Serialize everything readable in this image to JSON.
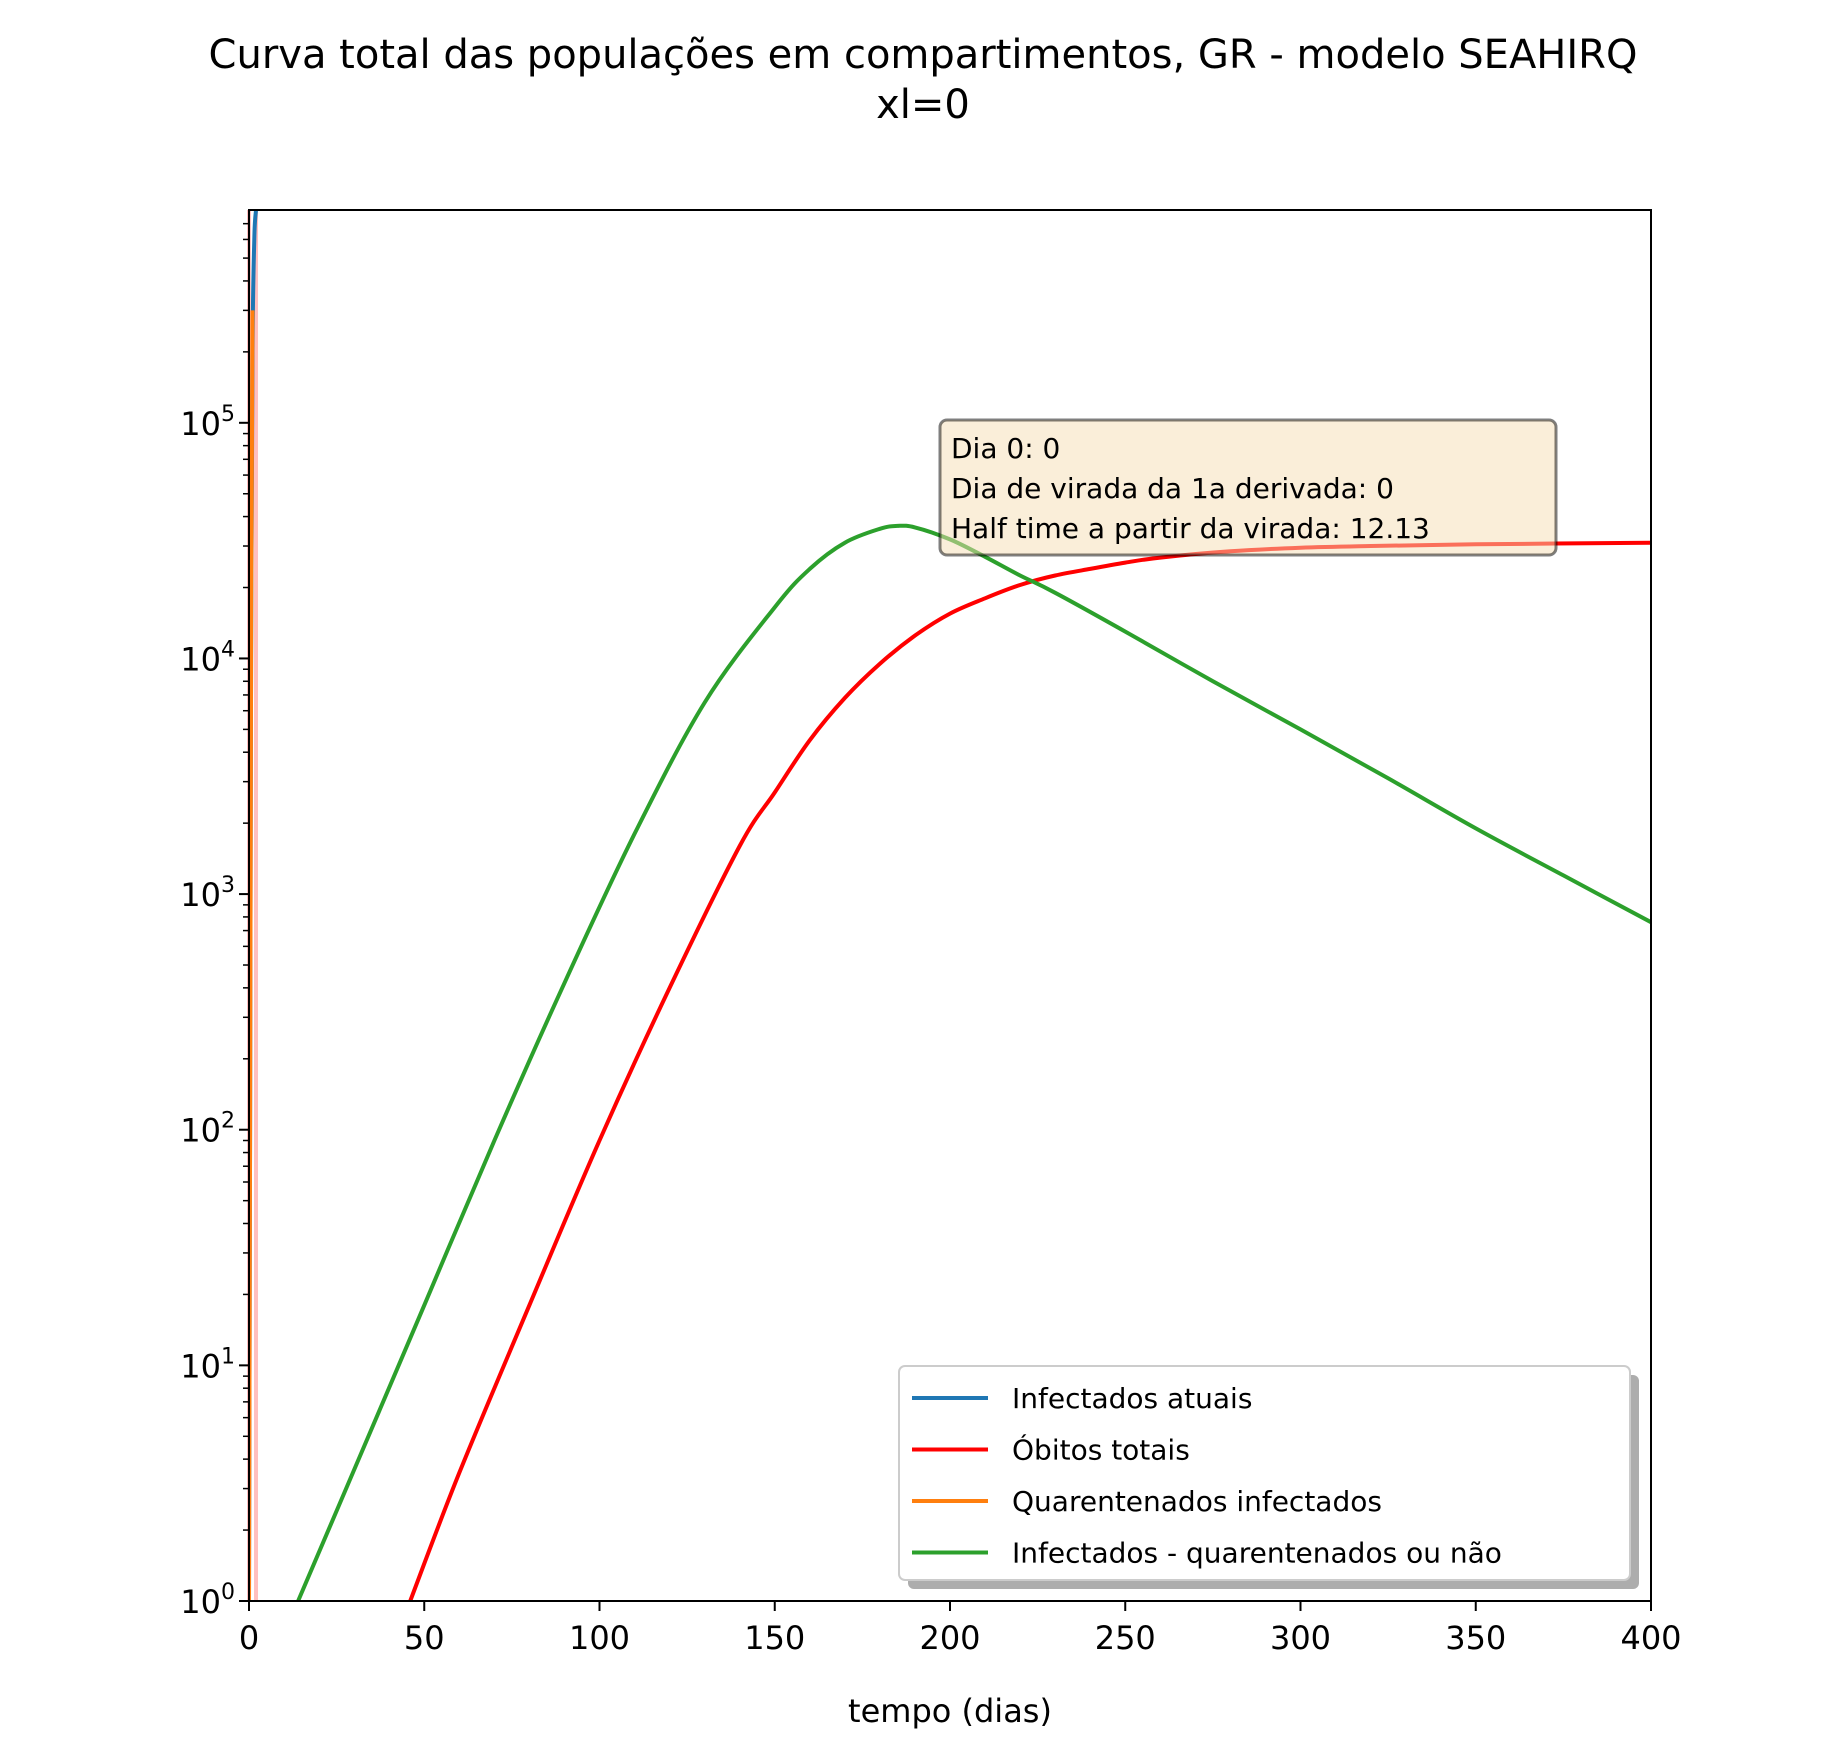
{
  "figure": {
    "title_line1": "Curva total das populações em compartimentos, GR - modelo SEAHIRQ",
    "title_line2": "xl=0"
  },
  "chart_data": {
    "type": "line",
    "title": "Curva total das populações em compartimentos, GR - modelo SEAHIRQ\nxl=0",
    "xlabel": "tempo (dias)",
    "ylabel": "",
    "xlim": [
      0,
      400
    ],
    "ylim": [
      1,
      800000
    ],
    "yscale": "log",
    "grid": false,
    "legend_position": "lower right",
    "x_ticks": [
      0,
      50,
      100,
      150,
      200,
      250,
      300,
      350,
      400
    ],
    "y_ticks": [
      {
        "value": 1,
        "base": "10",
        "exp": "0"
      },
      {
        "value": 10,
        "base": "10",
        "exp": "1"
      },
      {
        "value": 100,
        "base": "10",
        "exp": "2"
      },
      {
        "value": 1000,
        "base": "10",
        "exp": "3"
      },
      {
        "value": 10000,
        "base": "10",
        "exp": "4"
      },
      {
        "value": 100000,
        "base": "10",
        "exp": "5"
      }
    ],
    "series": [
      {
        "name": "Infectados atuais",
        "color": "#1f77b4",
        "x": [
          0,
          0.3,
          0.6,
          1,
          1.5,
          2
        ],
        "y": [
          1,
          100,
          10000,
          200000,
          600000,
          800000
        ]
      },
      {
        "name": "Óbitos totais",
        "color": "#ff0000",
        "x": [
          46,
          60,
          80,
          100,
          120,
          140,
          150,
          160,
          170,
          180,
          190,
          200,
          210,
          220,
          230,
          240,
          250,
          260,
          280,
          300,
          320,
          350,
          400
        ],
        "y": [
          1,
          3.5,
          18,
          90,
          400,
          1600,
          2700,
          4500,
          6800,
          9500,
          12500,
          15500,
          18000,
          20500,
          22500,
          24000,
          25500,
          26800,
          28500,
          29500,
          30000,
          30500,
          31000
        ]
      },
      {
        "name": "Quarentenados infectados",
        "color": "#ff7f0e",
        "x": [
          0,
          0.3,
          0.6,
          1
        ],
        "y": [
          1,
          100,
          10000,
          300000
        ]
      },
      {
        "name": "Infectados - quarentenados ou não",
        "color": "#2ca02c",
        "x": [
          14,
          30,
          50,
          70,
          90,
          110,
          130,
          150,
          160,
          170,
          180,
          185,
          190,
          200,
          210,
          220,
          230,
          250,
          275,
          300,
          325,
          350,
          375,
          400
        ],
        "y": [
          1,
          3.6,
          18,
          90,
          420,
          1800,
          6500,
          16500,
          24000,
          31000,
          35500,
          36500,
          36000,
          32000,
          27000,
          22500,
          19000,
          13000,
          8000,
          5000,
          3100,
          1900,
          1200,
          760
        ]
      }
    ],
    "annotation": [
      "Dia 0: 0",
      "Dia de virada da 1a derivada: 0",
      "Half time a partir da virada: 12.13"
    ],
    "vertical_markers": [
      {
        "x": 0,
        "color": "#ff0000"
      },
      {
        "x": 2,
        "color": "#ff0000"
      }
    ]
  }
}
